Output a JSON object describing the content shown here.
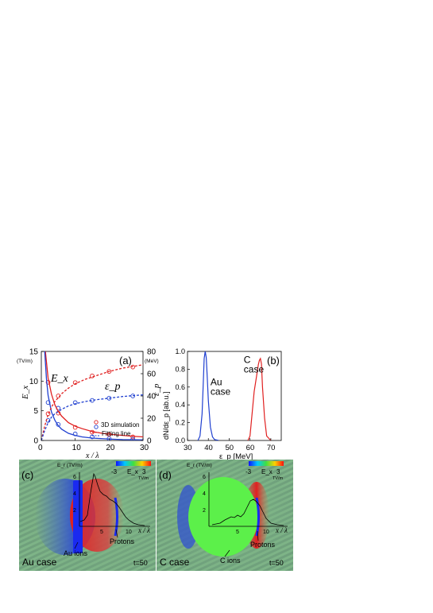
{
  "chart_data": [
    {
      "type": "line",
      "panel": "(a)",
      "left_axis": {
        "label": "E_x",
        "unit": "(TV/m)",
        "ylim": [
          0,
          15
        ],
        "ticks": [
          0,
          5,
          10,
          15
        ]
      },
      "right_axis": {
        "label": "ε_p",
        "unit": "(MeV)",
        "ylim": [
          0,
          80
        ],
        "ticks": [
          0,
          20,
          40,
          60,
          80
        ]
      },
      "x_axis": {
        "label": "x / λ",
        "xlim": [
          0,
          30
        ],
        "ticks": [
          0,
          10,
          20,
          30
        ]
      },
      "annotations": [
        "E_x",
        "ε_p"
      ],
      "legend": [
        "3D simulation",
        "Fitting line"
      ],
      "series": [
        {
          "name": "Ex red sim",
          "axis": "left",
          "color": "#e02020",
          "style": "markers",
          "x": [
            2,
            5,
            10,
            15,
            20,
            27
          ],
          "y": [
            9.8,
            4.6,
            2.2,
            1.4,
            1.0,
            0.6
          ]
        },
        {
          "name": "Ex blue sim",
          "axis": "left",
          "color": "#2040d0",
          "style": "markers",
          "x": [
            2,
            5,
            10,
            15,
            20,
            27
          ],
          "y": [
            6.4,
            2.7,
            1.1,
            0.6,
            0.3,
            0.2
          ]
        },
        {
          "name": "Ep red sim",
          "axis": "right",
          "color": "#e02020",
          "style": "markers",
          "x": [
            2,
            5,
            10,
            15,
            20,
            27
          ],
          "y": [
            24,
            40,
            52,
            58,
            62,
            66
          ]
        },
        {
          "name": "Ep blue sim",
          "axis": "right",
          "color": "#2040d0",
          "style": "markers",
          "x": [
            2,
            5,
            10,
            15,
            20,
            27
          ],
          "y": [
            18,
            29,
            34,
            36,
            38,
            40
          ]
        },
        {
          "name": "Ex red fit",
          "axis": "left",
          "color": "#e02020",
          "style": "solid",
          "x": [
            1.2,
            2,
            3,
            4,
            5,
            6,
            8,
            10,
            12,
            15,
            18,
            21,
            24,
            27,
            30
          ],
          "y": [
            15,
            10.5,
            7.8,
            6.0,
            4.9,
            4.1,
            3.0,
            2.4,
            2.0,
            1.5,
            1.2,
            1.0,
            0.85,
            0.7,
            0.6
          ]
        },
        {
          "name": "Ex blue fit",
          "axis": "left",
          "color": "#2040d0",
          "style": "solid",
          "x": [
            1.0,
            1.5,
            2,
            3,
            4,
            5,
            6,
            8,
            10,
            12,
            15,
            18,
            21,
            24,
            30
          ],
          "y": [
            15,
            10.5,
            7.6,
            4.8,
            3.4,
            2.5,
            1.9,
            1.2,
            0.85,
            0.6,
            0.4,
            0.3,
            0.22,
            0.15,
            0.1
          ]
        },
        {
          "name": "Ep red fit",
          "axis": "right",
          "color": "#e02020",
          "style": "dashed",
          "x": [
            0,
            1,
            2,
            3,
            4,
            6,
            8,
            10,
            13,
            16,
            20,
            24,
            30
          ],
          "y": [
            0,
            13,
            23,
            30,
            35,
            42,
            47,
            51,
            55,
            58,
            62,
            65,
            68
          ]
        },
        {
          "name": "Ep blue fit",
          "axis": "right",
          "color": "#2040d0",
          "style": "dashed",
          "x": [
            0,
            1,
            2,
            3,
            4,
            6,
            8,
            10,
            13,
            16,
            20,
            24,
            30
          ],
          "y": [
            0,
            9,
            16,
            21,
            24,
            28,
            31,
            33,
            35,
            36.5,
            38,
            39.5,
            41
          ]
        }
      ]
    },
    {
      "type": "line",
      "panel": "(b)",
      "x_axis": {
        "label": "ε_p [MeV]",
        "xlim": [
          30,
          75
        ],
        "ticks": [
          30,
          40,
          50,
          60,
          70
        ]
      },
      "y_axis": {
        "label": "dN/dε_p [ab.u.]",
        "ylim": [
          0,
          1.0
        ],
        "ticks": [
          "0.0",
          "0.2",
          "0.4",
          "0.6",
          "0.8",
          "1.0"
        ]
      },
      "labels": [
        {
          "text_lines": [
            "Au",
            "case"
          ],
          "x": 41,
          "y": 0.62
        },
        {
          "text_lines": [
            "C",
            "case"
          ],
          "x": 57,
          "y": 0.87
        }
      ],
      "series": [
        {
          "name": "Au case",
          "color": "#2040d0",
          "x": [
            35,
            36,
            37,
            37.5,
            38,
            38.5,
            39,
            39.5,
            40,
            41,
            42,
            43,
            45
          ],
          "y": [
            0,
            0.05,
            0.3,
            0.6,
            0.92,
            1.0,
            0.93,
            0.7,
            0.45,
            0.15,
            0.04,
            0.01,
            0
          ]
        },
        {
          "name": "C case",
          "color": "#e02020",
          "x": [
            59,
            60,
            61,
            62,
            63,
            64,
            64.5,
            65,
            65.5,
            66,
            67,
            68,
            70
          ],
          "y": [
            0,
            0.05,
            0.3,
            0.55,
            0.7,
            0.85,
            0.9,
            0.92,
            0.86,
            0.6,
            0.25,
            0.05,
            0
          ]
        }
      ]
    }
  ],
  "panel_c": {
    "label": "(c)",
    "case_label": "Au case",
    "time_label": "t=50",
    "ions_label": "Au ions",
    "protons_label": "Protons",
    "axis_x_label": "x / λ",
    "axis_y_label": "E_r (TV/m)",
    "x_ticks": [
      "5",
      "10"
    ],
    "y_ticks": [
      "2",
      "4",
      "6"
    ],
    "colorbar": {
      "min": "-3",
      "max": "3",
      "label": "E_x",
      "unit": "TV/m"
    }
  },
  "panel_d": {
    "label": "(d)",
    "case_label": "C case",
    "time_label": "t=50",
    "ions_label": "C ions",
    "protons_label": "Protons",
    "axis_x_label": "x / λ",
    "axis_y_label": "E_r (TV/m)",
    "x_ticks": [
      "5",
      "10"
    ],
    "y_ticks": [
      "2",
      "4",
      "6"
    ],
    "colorbar": {
      "min": "-3",
      "max": "3",
      "label": "E_x",
      "unit": "TV/m"
    }
  }
}
